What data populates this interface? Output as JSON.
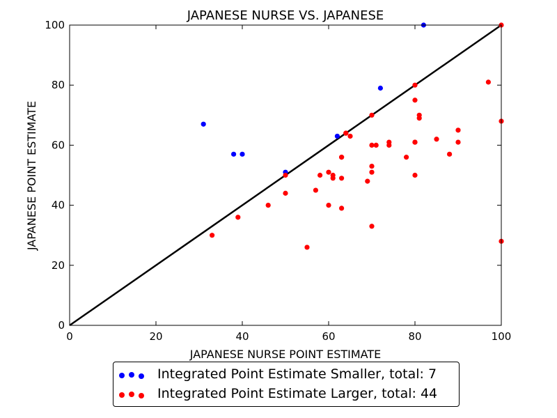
{
  "chart_data": {
    "type": "scatter",
    "title": "JAPANESE NURSE VS. JAPANESE",
    "xlabel": "JAPANESE NURSE POINT ESTIMATE",
    "ylabel": "JAPANESE POINT ESTIMATE",
    "xlim": [
      0,
      100
    ],
    "ylim": [
      0,
      100
    ],
    "x_ticks": [
      "0",
      "20",
      "40",
      "60",
      "80",
      "100"
    ],
    "y_ticks": [
      "0",
      "20",
      "40",
      "60",
      "80",
      "100"
    ],
    "grid": false,
    "legend_placement": "bottom-center",
    "reference_line": {
      "x": [
        0,
        100
      ],
      "y": [
        0,
        100
      ],
      "color": "#000000"
    },
    "series": [
      {
        "name": "Integrated Point Estimate Smaller, total: 7",
        "color": "#0000ff",
        "points": [
          [
            31,
            67
          ],
          [
            38,
            57
          ],
          [
            40,
            57
          ],
          [
            50,
            51
          ],
          [
            62,
            63
          ],
          [
            72,
            79
          ],
          [
            82,
            100
          ]
        ]
      },
      {
        "name": "Integrated Point Estimate Larger, total: 44",
        "color": "#ff0000",
        "points": [
          [
            33,
            30
          ],
          [
            39,
            36
          ],
          [
            46,
            40
          ],
          [
            50,
            44
          ],
          [
            50,
            50
          ],
          [
            55,
            26
          ],
          [
            57,
            45
          ],
          [
            58,
            50
          ],
          [
            60,
            51
          ],
          [
            60,
            40
          ],
          [
            61,
            50
          ],
          [
            61,
            49
          ],
          [
            63,
            56
          ],
          [
            63,
            49
          ],
          [
            63,
            39
          ],
          [
            64,
            64
          ],
          [
            65,
            63
          ],
          [
            69,
            48
          ],
          [
            70,
            70
          ],
          [
            70,
            60
          ],
          [
            70,
            53
          ],
          [
            70,
            51
          ],
          [
            70,
            33
          ],
          [
            71,
            60
          ],
          [
            74,
            61
          ],
          [
            74,
            60
          ],
          [
            78,
            56
          ],
          [
            80,
            80
          ],
          [
            80,
            75
          ],
          [
            80,
            61
          ],
          [
            80,
            50
          ],
          [
            81,
            70
          ],
          [
            81,
            69
          ],
          [
            85,
            62
          ],
          [
            88,
            57
          ],
          [
            90,
            65
          ],
          [
            90,
            61
          ],
          [
            97,
            81
          ],
          [
            100,
            68
          ],
          [
            100,
            28
          ],
          [
            100,
            100
          ],
          [
            64,
            64
          ],
          [
            63,
            56
          ],
          [
            80,
            61
          ]
        ]
      }
    ]
  }
}
